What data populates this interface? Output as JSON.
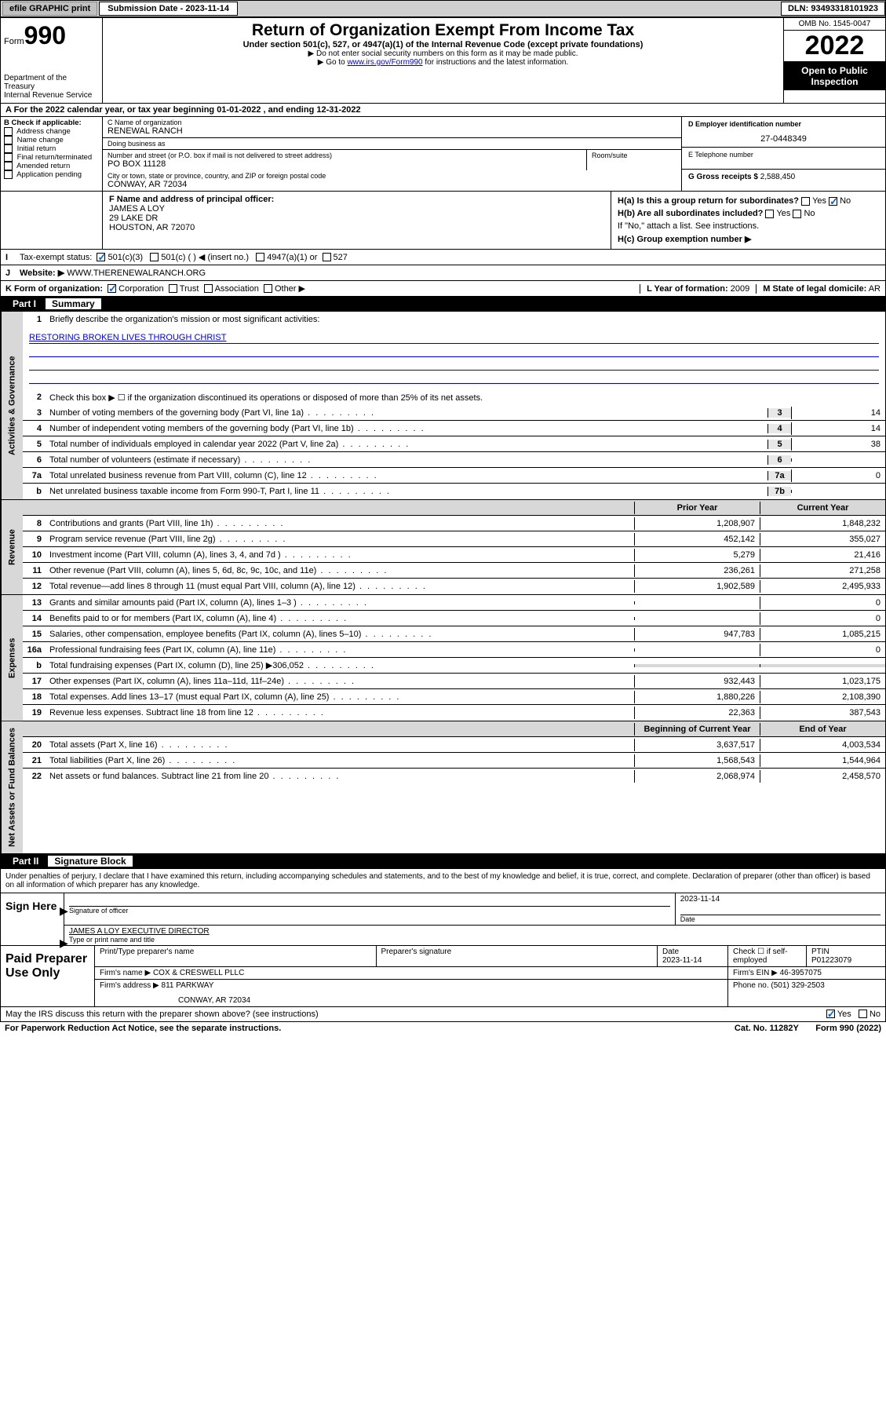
{
  "topbar": {
    "efile_btn": "efile GRAPHIC print",
    "sub_label": "Submission Date - 2023-11-14",
    "dln": "DLN: 93493318101923"
  },
  "header": {
    "form_word": "Form",
    "form_num": "990",
    "dept": "Department of the Treasury",
    "irs": "Internal Revenue Service",
    "title": "Return of Organization Exempt From Income Tax",
    "subtitle": "Under section 501(c), 527, or 4947(a)(1) of the Internal Revenue Code (except private foundations)",
    "note1": "▶ Do not enter social security numbers on this form as it may be made public.",
    "note2_pre": "▶ Go to ",
    "note2_link": "www.irs.gov/Form990",
    "note2_post": " for instructions and the latest information.",
    "omb": "OMB No. 1545-0047",
    "year": "2022",
    "inspection": "Open to Public Inspection"
  },
  "row_a": "A For the 2022 calendar year, or tax year beginning 01-01-2022   , and ending 12-31-2022",
  "col_b": {
    "label": "B Check if applicable:",
    "opts": [
      "Address change",
      "Name change",
      "Initial return",
      "Final return/terminated",
      "Amended return",
      "Application pending"
    ]
  },
  "col_c": {
    "name_label": "C Name of organization",
    "name": "RENEWAL RANCH",
    "dba_label": "Doing business as",
    "dba": "",
    "addr_label": "Number and street (or P.O. box if mail is not delivered to street address)",
    "room_label": "Room/suite",
    "addr": "PO BOX 11128",
    "city_label": "City or town, state or province, country, and ZIP or foreign postal code",
    "city": "CONWAY, AR  72034"
  },
  "col_d": {
    "ein_label": "D Employer identification number",
    "ein": "27-0448349",
    "phone_label": "E Telephone number",
    "phone": "",
    "gross_label": "G Gross receipts $",
    "gross": "2,588,450"
  },
  "section_f": {
    "label": "F  Name and address of principal officer:",
    "name": "JAMES A LOY",
    "addr1": "29 LAKE DR",
    "addr2": "HOUSTON, AR  72070"
  },
  "section_h": {
    "ha_label": "H(a)  Is this a group return for subordinates?",
    "hb_label": "H(b)  Are all subordinates included?",
    "hb_note": "If \"No,\" attach a list. See instructions.",
    "hc_label": "H(c)  Group exemption number ▶",
    "yes": "Yes",
    "no": "No"
  },
  "row_i": {
    "label": "Tax-exempt status:",
    "opts": [
      "501(c)(3)",
      "501(c) (  ) ◀ (insert no.)",
      "4947(a)(1) or",
      "527"
    ]
  },
  "row_j": {
    "label": "Website: ▶",
    "val": "WWW.THERENEWALRANCH.ORG"
  },
  "row_k": {
    "label": "K Form of organization:",
    "opts": [
      "Corporation",
      "Trust",
      "Association",
      "Other ▶"
    ],
    "l_label": "L Year of formation:",
    "l_val": "2009",
    "m_label": "M State of legal domicile:",
    "m_val": "AR"
  },
  "part1": {
    "num": "Part I",
    "title": "Summary"
  },
  "summary": {
    "q1_label": "Briefly describe the organization's mission or most significant activities:",
    "q1_val": "RESTORING BROKEN LIVES THROUGH CHRIST",
    "q2": "Check this box ▶ ☐  if the organization discontinued its operations or disposed of more than 25% of its net assets.",
    "lines_gov": [
      {
        "n": "3",
        "t": "Number of voting members of the governing body (Part VI, line 1a)",
        "nb": "3",
        "v": "14"
      },
      {
        "n": "4",
        "t": "Number of independent voting members of the governing body (Part VI, line 1b)",
        "nb": "4",
        "v": "14"
      },
      {
        "n": "5",
        "t": "Total number of individuals employed in calendar year 2022 (Part V, line 2a)",
        "nb": "5",
        "v": "38"
      },
      {
        "n": "6",
        "t": "Total number of volunteers (estimate if necessary)",
        "nb": "6",
        "v": ""
      },
      {
        "n": "7a",
        "t": "Total unrelated business revenue from Part VIII, column (C), line 12",
        "nb": "7a",
        "v": "0"
      },
      {
        "n": "b",
        "t": "Net unrelated business taxable income from Form 990-T, Part I, line 11",
        "nb": "7b",
        "v": ""
      }
    ],
    "col_prior": "Prior Year",
    "col_current": "Current Year",
    "lines_rev": [
      {
        "n": "8",
        "t": "Contributions and grants (Part VIII, line 1h)",
        "p": "1,208,907",
        "c": "1,848,232"
      },
      {
        "n": "9",
        "t": "Program service revenue (Part VIII, line 2g)",
        "p": "452,142",
        "c": "355,027"
      },
      {
        "n": "10",
        "t": "Investment income (Part VIII, column (A), lines 3, 4, and 7d )",
        "p": "5,279",
        "c": "21,416"
      },
      {
        "n": "11",
        "t": "Other revenue (Part VIII, column (A), lines 5, 6d, 8c, 9c, 10c, and 11e)",
        "p": "236,261",
        "c": "271,258"
      },
      {
        "n": "12",
        "t": "Total revenue—add lines 8 through 11 (must equal Part VIII, column (A), line 12)",
        "p": "1,902,589",
        "c": "2,495,933"
      }
    ],
    "lines_exp": [
      {
        "n": "13",
        "t": "Grants and similar amounts paid (Part IX, column (A), lines 1–3 )",
        "p": "",
        "c": "0"
      },
      {
        "n": "14",
        "t": "Benefits paid to or for members (Part IX, column (A), line 4)",
        "p": "",
        "c": "0"
      },
      {
        "n": "15",
        "t": "Salaries, other compensation, employee benefits (Part IX, column (A), lines 5–10)",
        "p": "947,783",
        "c": "1,085,215"
      },
      {
        "n": "16a",
        "t": "Professional fundraising fees (Part IX, column (A), line 11e)",
        "p": "",
        "c": "0"
      },
      {
        "n": "b",
        "t": "Total fundraising expenses (Part IX, column (D), line 25) ▶306,052",
        "p": "GREY",
        "c": "GREY"
      },
      {
        "n": "17",
        "t": "Other expenses (Part IX, column (A), lines 11a–11d, 11f–24e)",
        "p": "932,443",
        "c": "1,023,175"
      },
      {
        "n": "18",
        "t": "Total expenses. Add lines 13–17 (must equal Part IX, column (A), line 25)",
        "p": "1,880,226",
        "c": "2,108,390"
      },
      {
        "n": "19",
        "t": "Revenue less expenses. Subtract line 18 from line 12",
        "p": "22,363",
        "c": "387,543"
      }
    ],
    "col_begin": "Beginning of Current Year",
    "col_end": "End of Year",
    "lines_net": [
      {
        "n": "20",
        "t": "Total assets (Part X, line 16)",
        "p": "3,637,517",
        "c": "4,003,534"
      },
      {
        "n": "21",
        "t": "Total liabilities (Part X, line 26)",
        "p": "1,568,543",
        "c": "1,544,964"
      },
      {
        "n": "22",
        "t": "Net assets or fund balances. Subtract line 21 from line 20",
        "p": "2,068,974",
        "c": "2,458,570"
      }
    ],
    "tab_gov": "Activities & Governance",
    "tab_rev": "Revenue",
    "tab_exp": "Expenses",
    "tab_net": "Net Assets or Fund Balances"
  },
  "part2": {
    "num": "Part II",
    "title": "Signature Block"
  },
  "sig": {
    "declare": "Under penalties of perjury, I declare that I have examined this return, including accompanying schedules and statements, and to the best of my knowledge and belief, it is true, correct, and complete. Declaration of preparer (other than officer) is based on all information of which preparer has any knowledge.",
    "sign_here": "Sign Here",
    "sig_officer": "Signature of officer",
    "sig_date": "2023-11-14",
    "date_lbl": "Date",
    "name_title": "JAMES A LOY  EXECUTIVE DIRECTOR",
    "name_lbl": "Type or print name and title"
  },
  "prep": {
    "label": "Paid Preparer Use Only",
    "h1": "Print/Type preparer's name",
    "h2": "Preparer's signature",
    "h3": "Date",
    "h3v": "2023-11-14",
    "h4": "Check ☐ if self-employed",
    "h5": "PTIN",
    "h5v": "P01223079",
    "firm_name_lbl": "Firm's name    ▶",
    "firm_name": "COX & CRESWELL PLLC",
    "firm_ein_lbl": "Firm's EIN ▶",
    "firm_ein": "46-3957075",
    "firm_addr_lbl": "Firm's address ▶",
    "firm_addr1": "811 PARKWAY",
    "firm_addr2": "CONWAY, AR  72034",
    "phone_lbl": "Phone no.",
    "phone": "(501) 329-2503"
  },
  "footer": {
    "discuss": "May the IRS discuss this return with the preparer shown above? (see instructions)",
    "yes": "Yes",
    "no": "No",
    "paperwork": "For Paperwork Reduction Act Notice, see the separate instructions.",
    "cat": "Cat. No. 11282Y",
    "formno": "Form 990 (2022)"
  }
}
